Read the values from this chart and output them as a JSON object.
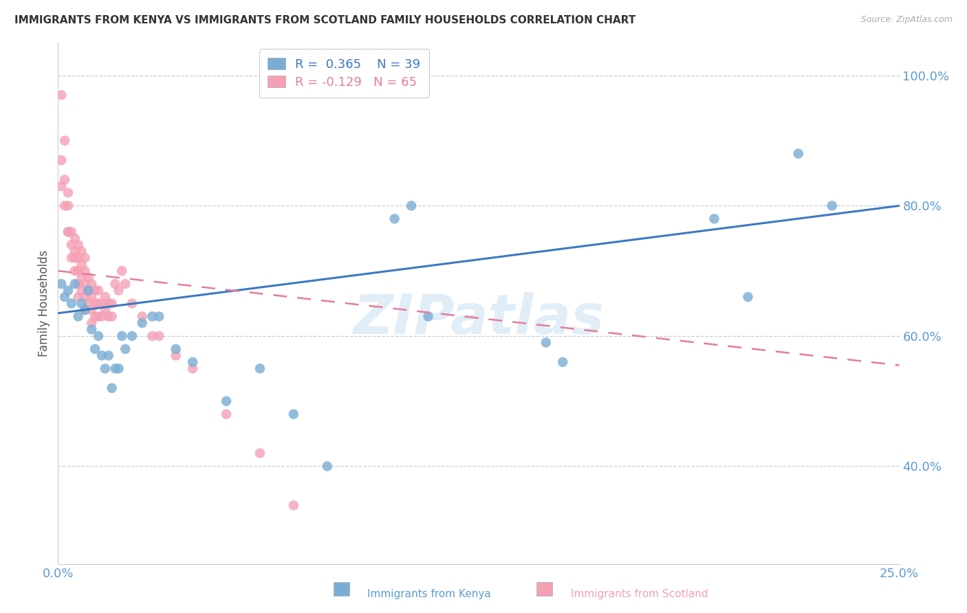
{
  "title": "IMMIGRANTS FROM KENYA VS IMMIGRANTS FROM SCOTLAND FAMILY HOUSEHOLDS CORRELATION CHART",
  "source": "Source: ZipAtlas.com",
  "ylabel": "Family Households",
  "xlabel_kenya": "Immigrants from Kenya",
  "xlabel_scotland": "Immigrants from Scotland",
  "legend_kenya_r": "R =  0.365",
  "legend_kenya_n": "N = 39",
  "legend_scotland_r": "R = -0.129",
  "legend_scotland_n": "N = 65",
  "xlim": [
    0.0,
    0.25
  ],
  "ylim": [
    0.25,
    1.05
  ],
  "yticks": [
    0.4,
    0.6,
    0.8,
    1.0
  ],
  "ytick_labels": [
    "40.0%",
    "60.0%",
    "80.0%",
    "100.0%"
  ],
  "xticks": [
    0.0,
    0.05,
    0.1,
    0.15,
    0.2,
    0.25
  ],
  "xtick_labels": [
    "0.0%",
    "",
    "",
    "",
    "",
    "25.0%"
  ],
  "color_kenya": "#7aadd4",
  "color_scotland": "#f4a0b5",
  "trendline_kenya_color": "#3b78c4",
  "trendline_scotland_color": "#e87a9a",
  "background": "#ffffff",
  "watermark": "ZIPatlas",
  "kenya_trendline_x": [
    0.0,
    0.25
  ],
  "kenya_trendline_y": [
    0.635,
    0.8
  ],
  "scotland_trendline_x": [
    0.0,
    0.25
  ],
  "scotland_trendline_y": [
    0.7,
    0.555
  ],
  "kenya_x": [
    0.001,
    0.002,
    0.003,
    0.004,
    0.005,
    0.006,
    0.007,
    0.008,
    0.009,
    0.01,
    0.011,
    0.012,
    0.013,
    0.014,
    0.015,
    0.016,
    0.017,
    0.018,
    0.019,
    0.02,
    0.022,
    0.025,
    0.028,
    0.03,
    0.035,
    0.04,
    0.05,
    0.06,
    0.07,
    0.08,
    0.1,
    0.105,
    0.11,
    0.145,
    0.15,
    0.195,
    0.205,
    0.22,
    0.23
  ],
  "kenya_y": [
    0.68,
    0.66,
    0.67,
    0.65,
    0.68,
    0.63,
    0.65,
    0.64,
    0.67,
    0.61,
    0.58,
    0.6,
    0.57,
    0.55,
    0.57,
    0.52,
    0.55,
    0.55,
    0.6,
    0.58,
    0.6,
    0.62,
    0.63,
    0.63,
    0.58,
    0.56,
    0.5,
    0.55,
    0.48,
    0.4,
    0.78,
    0.8,
    0.63,
    0.59,
    0.56,
    0.78,
    0.66,
    0.88,
    0.8
  ],
  "scotland_x": [
    0.001,
    0.001,
    0.001,
    0.002,
    0.002,
    0.002,
    0.003,
    0.003,
    0.003,
    0.003,
    0.004,
    0.004,
    0.004,
    0.005,
    0.005,
    0.005,
    0.005,
    0.006,
    0.006,
    0.006,
    0.006,
    0.006,
    0.007,
    0.007,
    0.007,
    0.007,
    0.008,
    0.008,
    0.008,
    0.008,
    0.008,
    0.009,
    0.009,
    0.009,
    0.01,
    0.01,
    0.01,
    0.01,
    0.011,
    0.011,
    0.011,
    0.012,
    0.012,
    0.012,
    0.013,
    0.013,
    0.014,
    0.014,
    0.015,
    0.015,
    0.016,
    0.016,
    0.017,
    0.018,
    0.019,
    0.02,
    0.022,
    0.025,
    0.028,
    0.03,
    0.035,
    0.04,
    0.05,
    0.06,
    0.07
  ],
  "scotland_y": [
    0.97,
    0.87,
    0.83,
    0.9,
    0.84,
    0.8,
    0.82,
    0.8,
    0.76,
    0.76,
    0.76,
    0.74,
    0.72,
    0.75,
    0.73,
    0.72,
    0.7,
    0.74,
    0.72,
    0.7,
    0.68,
    0.66,
    0.73,
    0.71,
    0.69,
    0.67,
    0.72,
    0.7,
    0.68,
    0.66,
    0.64,
    0.69,
    0.67,
    0.65,
    0.68,
    0.66,
    0.64,
    0.62,
    0.67,
    0.65,
    0.63,
    0.67,
    0.65,
    0.63,
    0.65,
    0.63,
    0.66,
    0.64,
    0.65,
    0.63,
    0.65,
    0.63,
    0.68,
    0.67,
    0.7,
    0.68,
    0.65,
    0.63,
    0.6,
    0.6,
    0.57,
    0.55,
    0.48,
    0.42,
    0.34
  ]
}
